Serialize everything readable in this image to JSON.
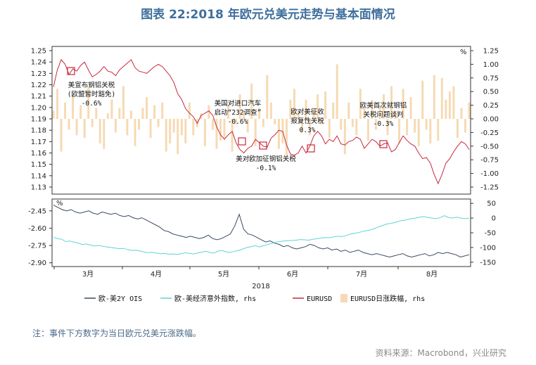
{
  "title": "图表 22:2018 年欧元兑美元走势与基本面情况",
  "note": "注：事件下方数字为当日欧元兑美元涨跌幅。",
  "source": "资料来源：Macrobond，兴业研究",
  "colors": {
    "eurusd": "#c8283c",
    "bars": "#f6dab4",
    "spread2y": "#3b4a63",
    "surprise": "#5fd4d4",
    "marker": "#c8283c",
    "title": "#3f6f9c"
  },
  "chart_data": [
    {
      "type": "line",
      "panel": "top",
      "left_axis": {
        "ticks": [
          "1.25",
          "1.24",
          "1.23",
          "1.22",
          "1.21",
          "1.20",
          "1.19",
          "1.18",
          "1.17",
          "1.16",
          "1.15",
          "1.14",
          "1.13"
        ],
        "range": [
          1.13,
          1.25
        ]
      },
      "right_axis": {
        "unit": "%",
        "ticks": [
          "1.25",
          "1.00",
          "0.75",
          "0.50",
          "0.25",
          "0.00",
          "-0.25",
          "-0.50",
          "-0.75",
          "-1.00",
          "-1.25"
        ],
        "range": [
          -1.25,
          1.25
        ]
      },
      "series": [
        {
          "name": "EURUSD",
          "axis": "left",
          "values": [
            1.218,
            1.233,
            1.242,
            1.238,
            1.229,
            1.234,
            1.232,
            1.237,
            1.24,
            1.233,
            1.227,
            1.229,
            1.232,
            1.236,
            1.232,
            1.231,
            1.228,
            1.233,
            1.236,
            1.239,
            1.242,
            1.235,
            1.232,
            1.231,
            1.23,
            1.233,
            1.236,
            1.238,
            1.236,
            1.232,
            1.228,
            1.222,
            1.212,
            1.207,
            1.199,
            1.195,
            1.192,
            1.186,
            1.193,
            1.195,
            1.197,
            1.193,
            1.183,
            1.176,
            1.172,
            1.176,
            1.179,
            1.169,
            1.163,
            1.16,
            1.164,
            1.166,
            1.172,
            1.169,
            1.166,
            1.165,
            1.173,
            1.176,
            1.18,
            1.179,
            1.167,
            1.159,
            1.158,
            1.16,
            1.166,
            1.16,
            1.166,
            1.175,
            1.179,
            1.175,
            1.168,
            1.172,
            1.17,
            1.175,
            1.168,
            1.167,
            1.17,
            1.171,
            1.174,
            1.172,
            1.164,
            1.168,
            1.172,
            1.17,
            1.166,
            1.168,
            1.169,
            1.161,
            1.163,
            1.169,
            1.175,
            1.171,
            1.168,
            1.166,
            1.16,
            1.155,
            1.156,
            1.151,
            1.141,
            1.133,
            1.141,
            1.151,
            1.155,
            1.161,
            1.166,
            1.17,
            1.168,
            1.163
          ]
        },
        {
          "name": "EURUSD日涨跌幅, rhs",
          "axis": "right",
          "type": "bar",
          "values": [
            0.15,
            0.55,
            -0.6,
            0.3,
            -0.2,
            0.45,
            -0.3,
            0.25,
            -0.35,
            0.6,
            -0.15,
            0.2,
            -0.45,
            -0.55,
            0.1,
            0.35,
            -0.25,
            0.2,
            0.6,
            -0.3,
            0.15,
            -0.5,
            -0.2,
            0.2,
            0.4,
            -0.35,
            0.25,
            -0.15,
            0.3,
            -0.6,
            -0.45,
            -0.25,
            -0.65,
            -0.3,
            -0.45,
            0.3,
            -0.3,
            -0.15,
            0.1,
            -0.5,
            0.25,
            -0.2,
            -0.55,
            -0.4,
            -0.35,
            0.25,
            -0.6,
            -0.1,
            0.45,
            0.15,
            -0.25,
            0.65,
            -0.5,
            0.2,
            -0.15,
            0.8,
            0.3,
            -0.1,
            -0.55,
            -0.45,
            -0.7,
            0.35,
            0.55,
            0.15,
            -0.25,
            0.35,
            -0.3,
            0.2,
            0.45,
            -0.1,
            0.5,
            -0.35,
            0.3,
            1.0,
            -0.2,
            -0.65,
            0.3,
            -0.15,
            -0.3,
            0.55,
            0.2,
            -0.4,
            0.35,
            -0.2,
            0.25,
            0.45,
            -0.3,
            0.6,
            0.15,
            -0.45,
            0.55,
            -0.3,
            0.4,
            -0.25,
            -0.5,
            0.7,
            -0.2,
            -0.45,
            0.8,
            -0.4,
            0.75,
            0.35,
            0.5,
            0.6,
            -0.35,
            0.2,
            -0.25,
            0.3
          ]
        }
      ],
      "annotations": [
        {
          "lines": [
            "美宣布钢铝关税",
            "(欧盟暂时豁免)",
            "-0.6%"
          ]
        },
        {
          "lines": [
            "美国对进口汽车",
            "启动“232调查”",
            "-0.6%"
          ]
        },
        {
          "lines": [
            "美对欧加征钢铝关税",
            "-0.1%"
          ]
        },
        {
          "lines": [
            "欧对美征收",
            "报复性关税",
            "0.3%"
          ]
        },
        {
          "lines": [
            "欧美首次就钢铝",
            "关税问题谈判",
            "-0.3%"
          ]
        }
      ]
    },
    {
      "type": "line",
      "panel": "bottom",
      "left_axis": {
        "unit": "%",
        "ticks": [
          "-2.45",
          "-2.60",
          "-2.75",
          "-2.90"
        ],
        "range": [
          -2.92,
          -2.36
        ]
      },
      "right_axis": {
        "ticks": [
          "50",
          "0",
          "-50",
          "-100",
          "-150"
        ],
        "range": [
          -160,
          60
        ]
      },
      "x_axis": {
        "ticks": [
          "3月",
          "4月",
          "5月",
          "6月",
          "7月",
          "8月"
        ],
        "label": "2018"
      },
      "series": [
        {
          "name": "欧-美2Y OIS",
          "axis": "left",
          "values": [
            -2.4,
            -2.42,
            -2.44,
            -2.45,
            -2.44,
            -2.46,
            -2.47,
            -2.46,
            -2.45,
            -2.47,
            -2.48,
            -2.46,
            -2.47,
            -2.48,
            -2.47,
            -2.49,
            -2.5,
            -2.49,
            -2.51,
            -2.52,
            -2.51,
            -2.53,
            -2.55,
            -2.57,
            -2.59,
            -2.62,
            -2.63,
            -2.65,
            -2.66,
            -2.67,
            -2.68,
            -2.67,
            -2.68,
            -2.69,
            -2.68,
            -2.66,
            -2.69,
            -2.7,
            -2.69,
            -2.67,
            -2.65,
            -2.58,
            -2.48,
            -2.61,
            -2.65,
            -2.66,
            -2.68,
            -2.7,
            -2.72,
            -2.71,
            -2.73,
            -2.74,
            -2.76,
            -2.75,
            -2.77,
            -2.78,
            -2.77,
            -2.76,
            -2.74,
            -2.75,
            -2.77,
            -2.78,
            -2.77,
            -2.79,
            -2.78,
            -2.8,
            -2.79,
            -2.81,
            -2.8,
            -2.79,
            -2.81,
            -2.82,
            -2.83,
            -2.82,
            -2.83,
            -2.84,
            -2.85,
            -2.84,
            -2.83,
            -2.82,
            -2.84,
            -2.85,
            -2.84,
            -2.83,
            -2.82,
            -2.84,
            -2.83,
            -2.81,
            -2.82,
            -2.81,
            -2.82,
            -2.83,
            -2.85,
            -2.84,
            -2.83
          ]
        },
        {
          "name": "欧-美经济意外指数, rhs",
          "axis": "right",
          "values": [
            -65,
            -70,
            -72,
            -80,
            -78,
            -82,
            -85,
            -90,
            -88,
            -92,
            -95,
            -93,
            -96,
            -98,
            -100,
            -102,
            -104,
            -103,
            -107,
            -110,
            -109,
            -112,
            -115,
            -118,
            -116,
            -119,
            -121,
            -120,
            -123,
            -122,
            -124,
            -121,
            -118,
            -120,
            -122,
            -119,
            -116,
            -113,
            -117,
            -119,
            -112,
            -110,
            -115,
            -117,
            -113,
            -110,
            -105,
            -100,
            -97,
            -94,
            -98,
            -94,
            -90,
            -86,
            -82,
            -80,
            -78,
            -77,
            -76,
            -75,
            -73,
            -74,
            -75,
            -72,
            -70,
            -68,
            -66,
            -67,
            -64,
            -62,
            -63,
            -60,
            -55,
            -52,
            -50,
            -46,
            -43,
            -40,
            -36,
            -30,
            -25,
            -20,
            -18,
            -15,
            -10,
            -8,
            -5,
            -2,
            0,
            3,
            5,
            2,
            0,
            -2,
            2,
            8,
            2,
            0,
            3,
            0,
            -2,
            0
          ]
        }
      ]
    }
  ],
  "legend": [
    {
      "label": "欧-美2Y OIS"
    },
    {
      "label": "欧-美经济意外指数, rhs"
    },
    {
      "label": "EURUSD"
    },
    {
      "label": "EURUSD日涨跌幅, rhs"
    }
  ]
}
